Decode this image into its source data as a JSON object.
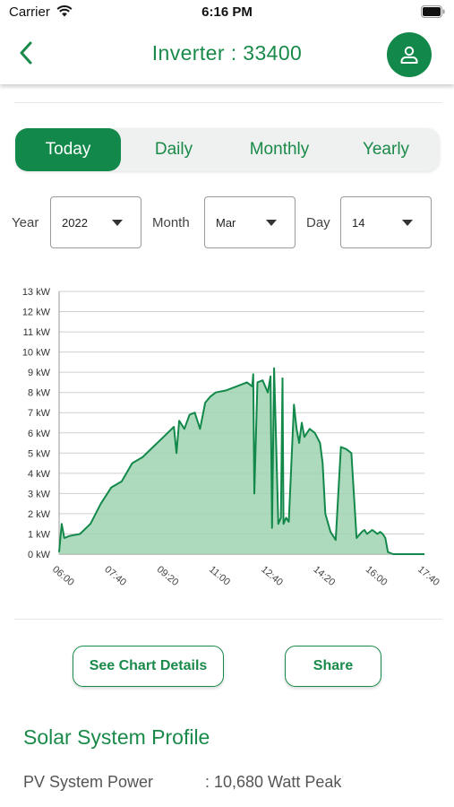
{
  "status_bar": {
    "carrier": "Carrier",
    "time": "6:16 PM",
    "icons": [
      "wifi-icon",
      "battery-icon"
    ]
  },
  "header": {
    "back_icon": "chevron-left-icon",
    "title": "Inverter : 33400",
    "profile_icon": "user-icon",
    "accent_color": "#12894a"
  },
  "tabs": [
    {
      "label": "Today",
      "active": true
    },
    {
      "label": "Daily",
      "active": false
    },
    {
      "label": "Monthly",
      "active": false
    },
    {
      "label": "Yearly",
      "active": false
    }
  ],
  "filters": {
    "year": {
      "label": "Year",
      "value": "2022"
    },
    "month": {
      "label": "Month",
      "value": "Mar"
    },
    "day": {
      "label": "Day",
      "value": "14"
    }
  },
  "chart_data": {
    "type": "area",
    "title": "",
    "xlabel": "",
    "ylabel": "",
    "unit": "kW",
    "y_ticks": [
      "0 kW",
      "1 kW",
      "2 kW",
      "3 kW",
      "4 kW",
      "5 kW",
      "6 kW",
      "7 kW",
      "8 kW",
      "9 kW",
      "10 kW",
      "11 kW",
      "12 kW",
      "13 kW"
    ],
    "x_ticks": [
      "06:00",
      "07:40",
      "09:20",
      "11:00",
      "12:40",
      "14:20",
      "16:00",
      "17:40"
    ],
    "ylim": [
      0,
      13
    ],
    "xlim": [
      "06:00",
      "17:40"
    ],
    "grid": true,
    "line_color": "#12894a",
    "fill_color": "#9fd2b0",
    "series": [
      {
        "x": [
          "06:00",
          "06:05",
          "06:10",
          "06:20",
          "06:40",
          "07:00",
          "07:20",
          "07:40",
          "08:00",
          "08:20",
          "08:40",
          "09:00",
          "09:20",
          "09:40",
          "09:45",
          "09:50",
          "10:00",
          "10:10",
          "10:20",
          "10:30",
          "10:40",
          "10:50",
          "11:00",
          "11:20",
          "11:40",
          "12:00",
          "12:10",
          "12:12",
          "12:14",
          "12:20",
          "12:30",
          "12:40",
          "12:45",
          "12:48",
          "12:52",
          "13:00",
          "13:05",
          "13:08",
          "13:10",
          "13:15",
          "13:20",
          "13:30",
          "13:35",
          "13:40",
          "13:45",
          "13:50",
          "14:00",
          "14:10",
          "14:20",
          "14:25",
          "14:30",
          "14:40",
          "14:45",
          "14:50",
          "15:00",
          "15:10",
          "15:20",
          "15:30",
          "15:40",
          "15:45",
          "15:50",
          "16:00",
          "16:05",
          "16:10",
          "16:15",
          "16:20",
          "16:25",
          "16:30",
          "16:40",
          "16:50",
          "17:00",
          "17:10",
          "17:15",
          "17:20",
          "17:40"
        ],
        "values": [
          0.1,
          1.5,
          0.8,
          0.9,
          1.0,
          1.5,
          2.5,
          3.3,
          3.6,
          4.5,
          4.8,
          5.3,
          5.8,
          6.3,
          5.0,
          6.6,
          6.2,
          6.9,
          7.0,
          6.2,
          7.5,
          7.8,
          8.0,
          8.1,
          8.3,
          8.5,
          8.3,
          8.9,
          3.0,
          8.5,
          8.6,
          8.0,
          8.8,
          1.3,
          9.2,
          1.5,
          1.8,
          8.7,
          1.5,
          1.8,
          1.6,
          7.4,
          6.2,
          5.5,
          6.5,
          5.8,
          6.2,
          6.0,
          5.5,
          4.5,
          2.0,
          1.1,
          0.9,
          0.7,
          5.3,
          5.2,
          5.0,
          0.8,
          1.1,
          1.2,
          1.0,
          1.2,
          1.1,
          1.0,
          1.1,
          1.0,
          0.8,
          0.1,
          0.0,
          0.0,
          0.0,
          0.0,
          0.0,
          0.0,
          0.0
        ]
      }
    ]
  },
  "buttons": {
    "details": "See Chart Details",
    "share": "Share"
  },
  "profile": {
    "title": "Solar System Profile",
    "rows": [
      {
        "key": "PV System Power",
        "value": ": 10,680 Watt Peak"
      }
    ]
  }
}
